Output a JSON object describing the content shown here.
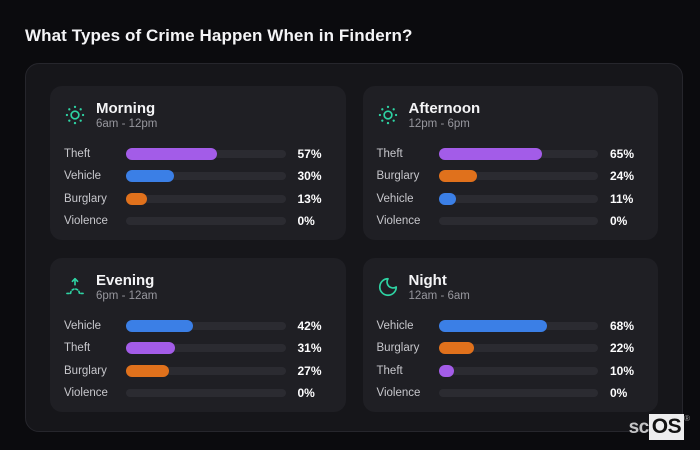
{
  "page": {
    "title": "What Types of Crime Happen When in Findern?"
  },
  "brand": {
    "prefix": "sc",
    "suffix": "OS",
    "registered": "®"
  },
  "colors": {
    "accent_teal": "#2ed3a3",
    "page_background": "#0b0b0e",
    "container_background": "#16161a",
    "panel_background": "#1f1f24",
    "track_background": "#2b2b31",
    "by_category": {
      "Theft": "#a35ce8",
      "Vehicle": "#3b7fe6",
      "Burglary": "#e0711c",
      "Violence": "#2b2b31"
    }
  },
  "chart_data": [
    {
      "type": "bar",
      "orientation": "horizontal",
      "title": "Morning",
      "subtitle": "6am - 12pm",
      "icon": "sun-icon",
      "categories": [
        "Theft",
        "Vehicle",
        "Burglary",
        "Violence"
      ],
      "values": [
        57,
        30,
        13,
        0
      ],
      "value_labels": [
        "57%",
        "30%",
        "13%",
        "0%"
      ],
      "unit": "%",
      "xlim": [
        0,
        100
      ],
      "grid": false,
      "legend": false
    },
    {
      "type": "bar",
      "orientation": "horizontal",
      "title": "Afternoon",
      "subtitle": "12pm - 6pm",
      "icon": "sun-icon",
      "categories": [
        "Theft",
        "Burglary",
        "Vehicle",
        "Violence"
      ],
      "values": [
        65,
        24,
        11,
        0
      ],
      "value_labels": [
        "65%",
        "24%",
        "11%",
        "0%"
      ],
      "unit": "%",
      "xlim": [
        0,
        100
      ],
      "grid": false,
      "legend": false
    },
    {
      "type": "bar",
      "orientation": "horizontal",
      "title": "Evening",
      "subtitle": "6pm - 12am",
      "icon": "sunset-icon",
      "categories": [
        "Vehicle",
        "Theft",
        "Burglary",
        "Violence"
      ],
      "values": [
        42,
        31,
        27,
        0
      ],
      "value_labels": [
        "42%",
        "31%",
        "27%",
        "0%"
      ],
      "unit": "%",
      "xlim": [
        0,
        100
      ],
      "grid": false,
      "legend": false
    },
    {
      "type": "bar",
      "orientation": "horizontal",
      "title": "Night",
      "subtitle": "12am - 6am",
      "icon": "moon-icon",
      "categories": [
        "Vehicle",
        "Burglary",
        "Theft",
        "Violence"
      ],
      "values": [
        68,
        22,
        10,
        0
      ],
      "value_labels": [
        "68%",
        "22%",
        "10%",
        "0%"
      ],
      "unit": "%",
      "xlim": [
        0,
        100
      ],
      "grid": false,
      "legend": false
    }
  ]
}
